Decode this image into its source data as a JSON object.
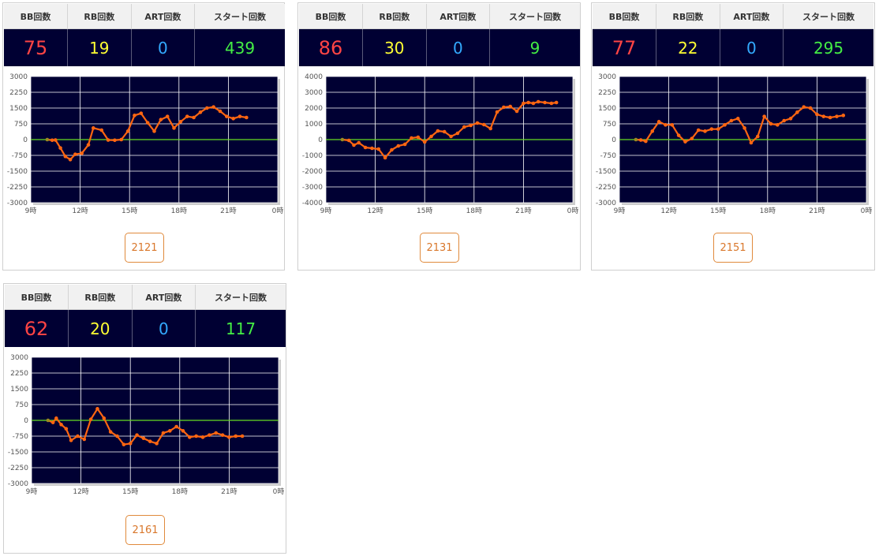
{
  "headers": {
    "bb": "BB回数",
    "rb": "RB回数",
    "art": "ART回数",
    "start": "スタート回数"
  },
  "colors": {
    "bb": "#ff4444",
    "rb": "#ffff33",
    "art": "#33aaff",
    "start": "#44ee44",
    "line": "#ff6611",
    "zero": "#66dd22",
    "plot_bg": "#000033",
    "button": "#d9772b"
  },
  "machines": [
    {
      "bb": "75",
      "rb": "19",
      "art": "0",
      "start": "439",
      "button_label": "2121"
    },
    {
      "bb": "86",
      "rb": "30",
      "art": "0",
      "start": "9",
      "button_label": "2131"
    },
    {
      "bb": "77",
      "rb": "22",
      "art": "0",
      "start": "295",
      "button_label": "2151"
    },
    {
      "bb": "62",
      "rb": "20",
      "art": "0",
      "start": "117",
      "button_label": "2161"
    }
  ],
  "chart_data": [
    {
      "type": "line",
      "x_ticks": [
        "9時",
        "12時",
        "15時",
        "18時",
        "21時",
        "0時"
      ],
      "xlim": [
        9,
        24
      ],
      "ylim": [
        -3000,
        3000
      ],
      "y_ticks": [
        "3000",
        "2250",
        "1500",
        "750",
        "0",
        "-750",
        "-1500",
        "-2250",
        "-3000"
      ],
      "grid": true,
      "x": [
        10,
        10.3,
        10.5,
        10.8,
        11.1,
        11.4,
        11.7,
        12.1,
        12.5,
        12.8,
        13.3,
        13.7,
        14.1,
        14.5,
        14.9,
        15.3,
        15.7,
        16.1,
        16.5,
        16.9,
        17.3,
        17.7,
        18.1,
        18.5,
        18.9,
        19.3,
        19.7,
        20.1,
        20.5,
        20.9,
        21.3,
        21.7,
        22.1
      ],
      "y": [
        0,
        -30,
        -20,
        -400,
        -800,
        -950,
        -700,
        -650,
        -250,
        550,
        450,
        -20,
        -30,
        0,
        400,
        1150,
        1250,
        800,
        400,
        950,
        1100,
        550,
        850,
        1100,
        1050,
        1300,
        1500,
        1550,
        1350,
        1100,
        1000,
        1100,
        1050
      ]
    },
    {
      "type": "line",
      "x_ticks": [
        "9時",
        "12時",
        "15時",
        "18時",
        "21時",
        "0時"
      ],
      "xlim": [
        9,
        24
      ],
      "ylim": [
        -4000,
        4000
      ],
      "y_ticks": [
        "4000",
        "3000",
        "2000",
        "1000",
        "0",
        "-1000",
        "-2000",
        "-3000",
        "-4000"
      ],
      "grid": true,
      "x": [
        10,
        10.4,
        10.7,
        11.0,
        11.4,
        11.8,
        12.2,
        12.6,
        13.0,
        13.4,
        13.8,
        14.2,
        14.6,
        15.0,
        15.4,
        15.8,
        16.2,
        16.6,
        17.0,
        17.4,
        17.8,
        18.2,
        18.6,
        19.0,
        19.4,
        19.8,
        20.2,
        20.6,
        21.0,
        21.3,
        21.6,
        21.9,
        22.3,
        22.7,
        23.0
      ],
      "y": [
        0,
        -50,
        -350,
        -200,
        -500,
        -550,
        -600,
        -1150,
        -650,
        -400,
        -300,
        100,
        150,
        -150,
        200,
        550,
        500,
        200,
        400,
        800,
        900,
        1050,
        950,
        700,
        1750,
        2050,
        2100,
        1800,
        2300,
        2350,
        2300,
        2400,
        2350,
        2300,
        2350
      ]
    },
    {
      "type": "line",
      "x_ticks": [
        "9時",
        "12時",
        "15時",
        "18時",
        "21時",
        "0時"
      ],
      "xlim": [
        9,
        24
      ],
      "ylim": [
        -3000,
        3000
      ],
      "y_ticks": [
        "3000",
        "2250",
        "1500",
        "750",
        "0",
        "-750",
        "-1500",
        "-2250",
        "-3000"
      ],
      "grid": true,
      "x": [
        10,
        10.3,
        10.6,
        11.0,
        11.4,
        11.8,
        12.2,
        12.6,
        13.0,
        13.4,
        13.8,
        14.2,
        14.6,
        15.0,
        15.4,
        15.8,
        16.2,
        16.6,
        17.0,
        17.4,
        17.8,
        18.2,
        18.6,
        19.0,
        19.4,
        19.8,
        20.2,
        20.6,
        21.0,
        21.4,
        21.8,
        22.2,
        22.6
      ],
      "y": [
        0,
        -20,
        -80,
        400,
        850,
        700,
        700,
        200,
        -100,
        50,
        450,
        400,
        500,
        500,
        700,
        900,
        1000,
        550,
        -150,
        150,
        1100,
        750,
        700,
        900,
        1000,
        1300,
        1550,
        1500,
        1200,
        1100,
        1050,
        1100,
        1150
      ]
    },
    {
      "type": "line",
      "x_ticks": [
        "9時",
        "12時",
        "15時",
        "18時",
        "21時",
        "0時"
      ],
      "xlim": [
        9,
        24
      ],
      "ylim": [
        -3000,
        3000
      ],
      "y_ticks": [
        "3000",
        "2250",
        "1500",
        "750",
        "0",
        "-750",
        "-1500",
        "-2250",
        "-3000"
      ],
      "grid": true,
      "x": [
        10,
        10.3,
        10.5,
        10.8,
        11.1,
        11.4,
        11.8,
        12.2,
        12.6,
        13.0,
        13.4,
        13.8,
        14.2,
        14.6,
        15.0,
        15.4,
        15.8,
        16.2,
        16.6,
        17.0,
        17.4,
        17.8,
        18.2,
        18.6,
        19.0,
        19.4,
        19.8,
        20.2,
        20.6,
        21.0,
        21.4,
        21.8
      ],
      "y": [
        0,
        -100,
        100,
        -200,
        -400,
        -950,
        -750,
        -900,
        50,
        550,
        100,
        -550,
        -750,
        -1150,
        -1100,
        -700,
        -850,
        -1000,
        -1100,
        -600,
        -500,
        -300,
        -500,
        -800,
        -750,
        -800,
        -700,
        -600,
        -700,
        -800,
        -750,
        -750
      ]
    }
  ]
}
